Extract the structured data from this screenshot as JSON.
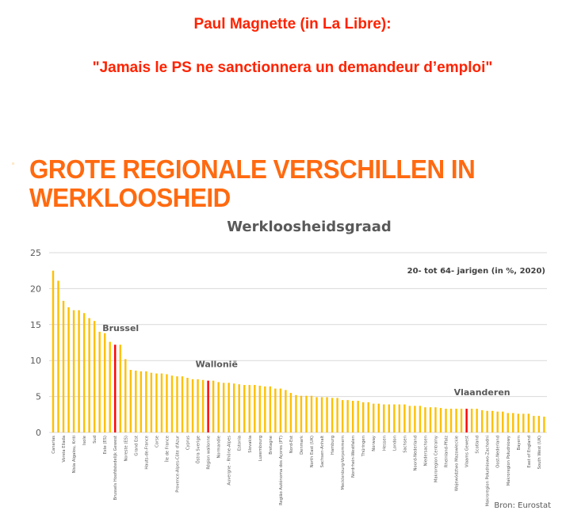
{
  "header": {
    "line1": "Paul Magnette (in La Libre):",
    "line2": "\"Jamais le PS ne sanctionnera un demandeur d’emploi\""
  },
  "slide": {
    "title_line1": "GROTE REGIONALE VERSCHILLEN IN",
    "title_line2": "WERKLOOSHEID"
  },
  "chart_data": {
    "type": "bar",
    "title": "Werkloosheidsgraad",
    "subtitle": "20- tot 64- jarigen (in %, 2020)",
    "source": "Bron: Eurostat",
    "ylim": [
      0,
      25
    ],
    "yticks": [
      0,
      5,
      10,
      15,
      20,
      25
    ],
    "grid": true,
    "colors": {
      "default": "#ffc000",
      "highlight": "#ff0000"
    },
    "annotations": [
      {
        "text": "Brussel",
        "bar_index": 12
      },
      {
        "text": "Wallonië",
        "bar_index": 30
      },
      {
        "text": "Vlaanderen",
        "bar_index": 80
      }
    ],
    "highlighted_indices": [
      12,
      30,
      80
    ],
    "tick_labels_every_other_bar": [
      "Canarias",
      "Voreia Ellada",
      "Nisia Aigaiou, Kriti",
      "Isole",
      "Sud",
      "Este (ES)",
      "Brussels Hoofdstedelijk Gewest",
      "Noreste (ES)",
      "Grand Est",
      "Hauts-de-France",
      "Corse",
      "Île de France",
      "Provence-Alpes-Côte d'Azur",
      "Cyprus",
      "Östra Sverige",
      "Région wallonne",
      "Normandie",
      "Auvergne - Rhône-Alpes",
      "Estonia",
      "Slovakia",
      "Luxembourg",
      "Bretagne",
      "Região Autónoma dos Açores (PT)",
      "Nord-Est",
      "Denmark",
      "North East (UK)",
      "Sachsen-Anhalt",
      "Hamburg",
      "Mecklenburg-Vorpommern",
      "Nordrhein-Westfalen",
      "Thüringen",
      "Norway",
      "Hessen",
      "London",
      "Sachsen",
      "Noord-Nederland",
      "Niedersachsen",
      "Makroregion Centralny",
      "Rheinland-Pfalz",
      "Województwo Mazowieckie",
      "Vlaams Gewest",
      "Scotland",
      "Makroregion Południowo-Zachodni",
      "Oost-Nederland",
      "Makroregion Południowy",
      "Bayern",
      "East of England",
      "South West (UK)"
    ],
    "values": [
      22.5,
      21.1,
      18.3,
      17.4,
      17.0,
      17.0,
      16.6,
      15.9,
      15.5,
      14.0,
      13.8,
      12.6,
      12.2,
      12.2,
      10.2,
      8.7,
      8.6,
      8.5,
      8.5,
      8.3,
      8.2,
      8.2,
      8.1,
      7.9,
      7.8,
      7.8,
      7.6,
      7.4,
      7.4,
      7.3,
      7.2,
      7.2,
      7.0,
      6.9,
      6.9,
      6.8,
      6.7,
      6.6,
      6.6,
      6.6,
      6.5,
      6.4,
      6.4,
      6.1,
      6.1,
      5.9,
      5.5,
      5.2,
      5.1,
      5.1,
      5.1,
      4.9,
      4.9,
      4.9,
      4.8,
      4.8,
      4.5,
      4.5,
      4.4,
      4.4,
      4.2,
      4.2,
      4.0,
      4.0,
      3.9,
      3.9,
      3.9,
      3.9,
      3.9,
      3.7,
      3.7,
      3.7,
      3.5,
      3.5,
      3.5,
      3.4,
      3.3,
      3.3,
      3.3,
      3.3,
      3.3,
      3.3,
      3.3,
      3.1,
      3.0,
      3.0,
      2.9,
      2.9,
      2.7,
      2.7,
      2.6,
      2.6,
      2.6,
      2.3,
      2.3,
      2.2
    ]
  }
}
